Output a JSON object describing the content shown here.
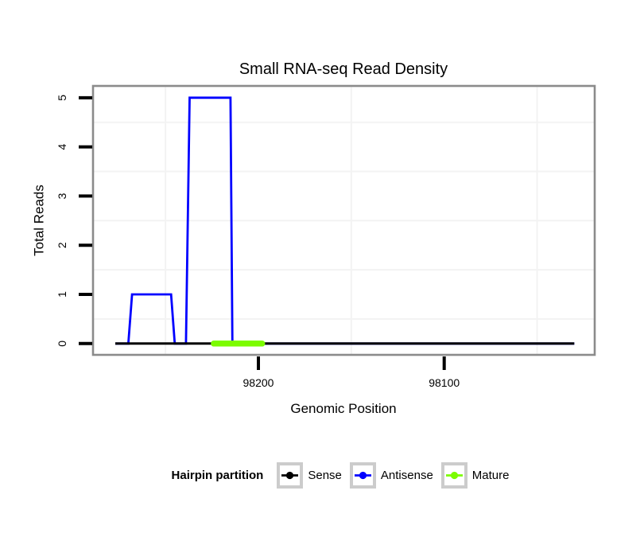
{
  "figure": {
    "title": "Small RNA-seq Read Density"
  },
  "chart_data": {
    "type": "line",
    "subtype": "read-coverage-step",
    "title": "Small RNA-seq Read Density",
    "xlabel": "Genomic Position",
    "ylabel": "Total Reads",
    "x_reversed": true,
    "xlim": [
      98289,
      98019
    ],
    "ylim": [
      -0.23,
      5.24
    ],
    "x_ticks": [
      98200,
      98100
    ],
    "y_ticks": [
      0,
      1,
      2,
      3,
      4,
      5
    ],
    "x_minor_gridlines": [
      98250,
      98150,
      98050
    ],
    "y_minor_gridlines": [
      0.5,
      1.5,
      2.5,
      3.5,
      4.5
    ],
    "grid_color": "#f3f3f3",
    "panel_border_color": "#8b8b8b",
    "tick_color": "#000000",
    "series": [
      {
        "name": "Antisense",
        "color": "#0000ff",
        "width": 2.8,
        "linecap": "butt",
        "points": [
          [
            98277,
            0
          ],
          [
            98270,
            0
          ],
          [
            98268,
            1
          ],
          [
            98247,
            1
          ],
          [
            98245,
            0
          ],
          [
            98239,
            0
          ],
          [
            98237,
            5
          ],
          [
            98215,
            5
          ],
          [
            98214,
            0
          ],
          [
            98030,
            0
          ]
        ]
      },
      {
        "name": "Sense",
        "color": "#000000",
        "width": 3,
        "linecap": "butt",
        "points": [
          [
            98277,
            0
          ],
          [
            98030,
            0
          ]
        ]
      },
      {
        "name": "Mature",
        "color": "#7cfc00",
        "width": 7.5,
        "linecap": "round",
        "points": [
          [
            98224,
            0
          ],
          [
            98198,
            0
          ]
        ]
      }
    ],
    "legend_position": "bottom"
  },
  "legend": {
    "title": "Hairpin partition",
    "items": [
      {
        "label": "Sense",
        "color": "#000000"
      },
      {
        "label": "Antisense",
        "color": "#0000ff"
      },
      {
        "label": "Mature",
        "color": "#7cfc00"
      }
    ]
  }
}
